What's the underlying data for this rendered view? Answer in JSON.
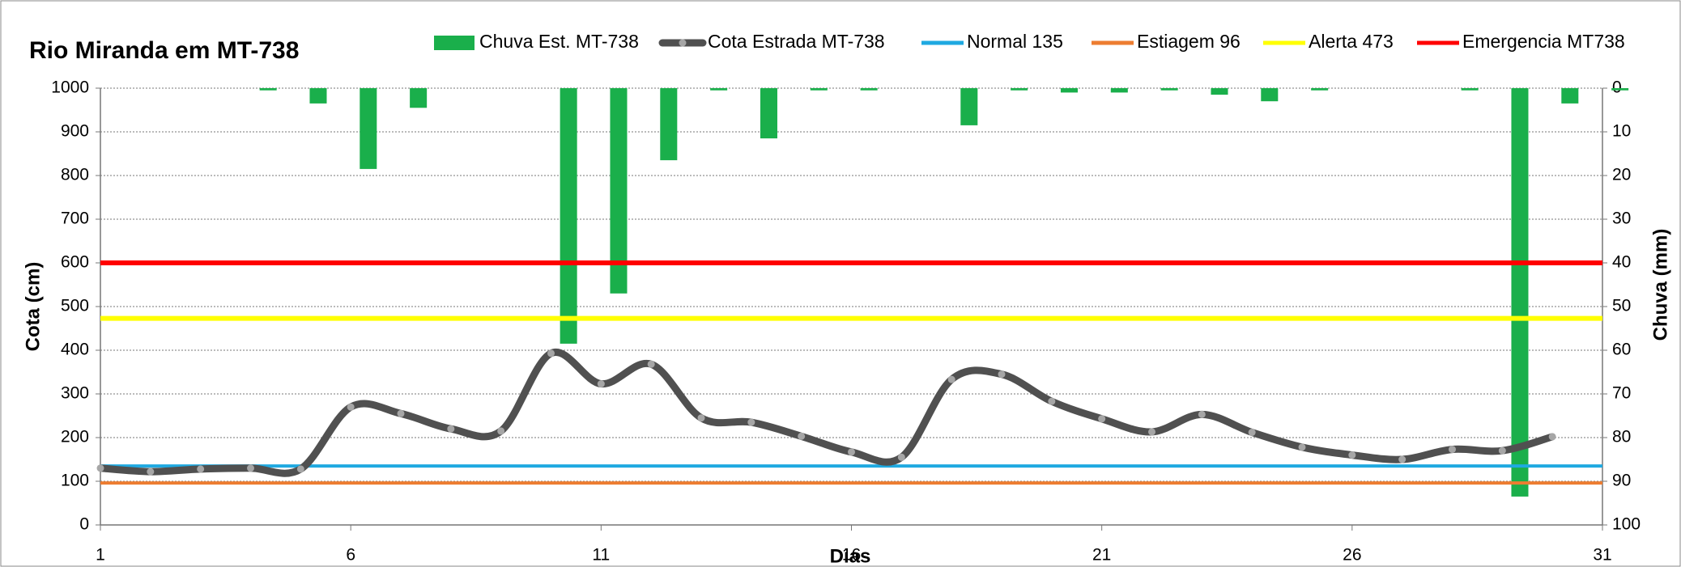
{
  "chart_data": {
    "type": "combo",
    "title": "Rio Miranda  em MT-738",
    "xlabel": "Dias",
    "ylabel": "Cota   (cm)",
    "y2label": "Chuva (mm)",
    "x": [
      1,
      2,
      3,
      4,
      5,
      6,
      7,
      8,
      9,
      10,
      11,
      12,
      13,
      14,
      15,
      16,
      17,
      18,
      19,
      20,
      21,
      22,
      23,
      24,
      25,
      26,
      27,
      28,
      29,
      30,
      31
    ],
    "xlim": [
      1,
      31
    ],
    "xticks": [
      1,
      6,
      11,
      16,
      21,
      26,
      31
    ],
    "ylim": [
      0,
      1000
    ],
    "yticks": [
      0,
      100,
      200,
      300,
      400,
      500,
      600,
      700,
      800,
      900,
      1000
    ],
    "y2lim": [
      0,
      100
    ],
    "y2_reversed": true,
    "y2ticks": [
      0,
      10,
      20,
      30,
      40,
      50,
      60,
      70,
      80,
      90,
      100
    ],
    "grid": true,
    "series": [
      {
        "name": "Chuva Est. MT-738",
        "type": "bar",
        "axis": "y2",
        "color": "#1aaf4b",
        "values": [
          0,
          0,
          0,
          0.5,
          3.5,
          18.5,
          4.5,
          0,
          0,
          58.5,
          47,
          16.5,
          0.5,
          11.5,
          0.5,
          0.5,
          0,
          8.5,
          0.5,
          1,
          1,
          0.5,
          1.5,
          3,
          0.5,
          0,
          0,
          0.5,
          93.5,
          3.5,
          0.5
        ]
      },
      {
        "name": "Cota Estrada MT-738",
        "type": "line",
        "color": "#505050",
        "marker_color": "#a6a6a6",
        "values": [
          130,
          122,
          128,
          130,
          128,
          270,
          255,
          220,
          215,
          393,
          323,
          368,
          245,
          235,
          203,
          167,
          155,
          333,
          345,
          283,
          243,
          213,
          253,
          212,
          178,
          160,
          150,
          173,
          170,
          202,
          null
        ]
      },
      {
        "name": "Normal  135",
        "type": "hline",
        "color": "#1fa9e1",
        "value": 135
      },
      {
        "name": "Estiagem 96",
        "type": "hline",
        "color": "#ed7d31",
        "value": 96
      },
      {
        "name": "Alerta 473",
        "type": "hline",
        "color": "#ffff00",
        "value": 473
      },
      {
        "name": "Emergencia MT738",
        "type": "hline",
        "color": "#ff0000",
        "value": 600
      }
    ]
  }
}
